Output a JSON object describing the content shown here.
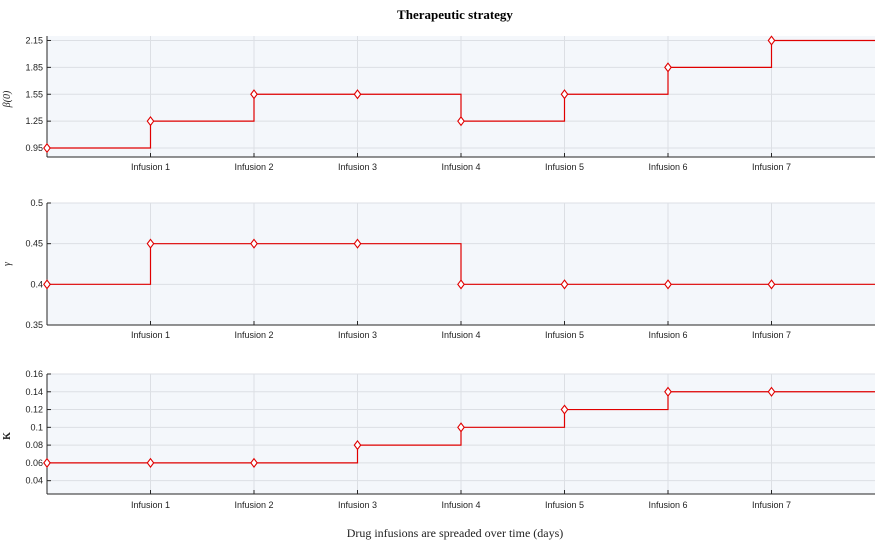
{
  "chart_data": [
    {
      "type": "line",
      "title": "Therapeutic strategy",
      "ylabel": "β(0)",
      "x_ticks": [
        "Infusion 1",
        "Infusion 2",
        "Infusion 3",
        "Infusion 4",
        "Infusion 5",
        "Infusion 6",
        "Infusion 7"
      ],
      "y_ticks": [
        "0.95",
        "1.25",
        "1.55",
        "1.85",
        "2.15"
      ],
      "ylim": [
        0.85,
        2.2
      ],
      "xlim": [
        0,
        8
      ],
      "grid": true,
      "series": [
        {
          "x": [
            0,
            1,
            2,
            3,
            4,
            5,
            6,
            7
          ],
          "y": [
            0.95,
            1.25,
            1.55,
            1.55,
            1.25,
            1.55,
            1.85,
            2.15
          ],
          "color": "#e00000",
          "step": "post",
          "marker": "diamond"
        }
      ]
    },
    {
      "type": "line",
      "ylabel": "γ",
      "x_ticks": [
        "Infusion 1",
        "Infusion 2",
        "Infusion 3",
        "Infusion 4",
        "Infusion 5",
        "Infusion 6",
        "Infusion 7"
      ],
      "y_ticks": [
        "0.35",
        "0.4",
        "0.45",
        "0.5"
      ],
      "ylim": [
        0.35,
        0.5
      ],
      "xlim": [
        0,
        8
      ],
      "grid": true,
      "series": [
        {
          "x": [
            0,
            1,
            2,
            3,
            4,
            5,
            6,
            7
          ],
          "y": [
            0.4,
            0.45,
            0.45,
            0.45,
            0.4,
            0.4,
            0.4,
            0.4
          ],
          "color": "#e00000",
          "step": "post",
          "marker": "diamond"
        }
      ]
    },
    {
      "type": "line",
      "ylabel": "K",
      "xlabel": "Drug infusions are spreaded over time (days)",
      "x_ticks": [
        "Infusion 1",
        "Infusion 2",
        "Infusion 3",
        "Infusion 4",
        "Infusion 5",
        "Infusion 6",
        "Infusion 7"
      ],
      "y_ticks": [
        "0.04",
        "0.06",
        "0.08",
        "0.1",
        "0.12",
        "0.14",
        "0.16"
      ],
      "ylim": [
        0.025,
        0.16
      ],
      "xlim": [
        0,
        8
      ],
      "grid": true,
      "series": [
        {
          "x": [
            0,
            1,
            2,
            3,
            4,
            5,
            6,
            7
          ],
          "y": [
            0.06,
            0.06,
            0.06,
            0.08,
            0.1,
            0.12,
            0.14,
            0.14
          ],
          "color": "#e00000",
          "step": "post",
          "marker": "diamond"
        }
      ]
    }
  ]
}
